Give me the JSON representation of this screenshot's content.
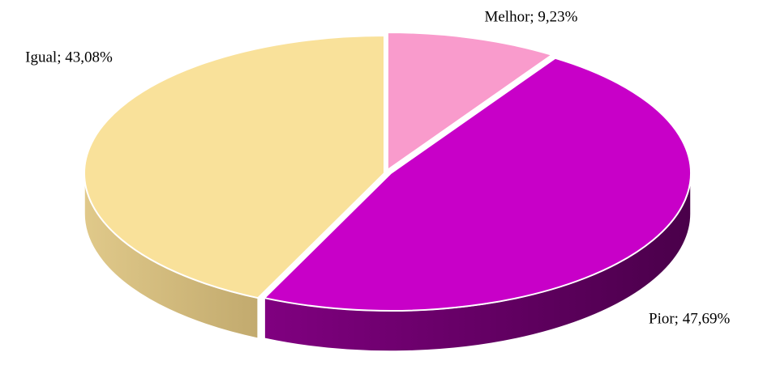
{
  "chart_data": {
    "type": "pie3d",
    "values": [
      9.23,
      47.69,
      43.08
    ],
    "value_labels": [
      "Melhor; 9,23%",
      "Pior; 47,69%",
      "Igual; 43,08%"
    ],
    "colors": [
      "#f99bcc",
      "#c800c8",
      "#f9e19a"
    ],
    "side_colors": [
      [
        "#e07fb0",
        "#c0608f"
      ],
      [
        "#800080",
        "#4a004a"
      ],
      [
        "#e0c98a",
        "#c2aa6e"
      ]
    ]
  }
}
